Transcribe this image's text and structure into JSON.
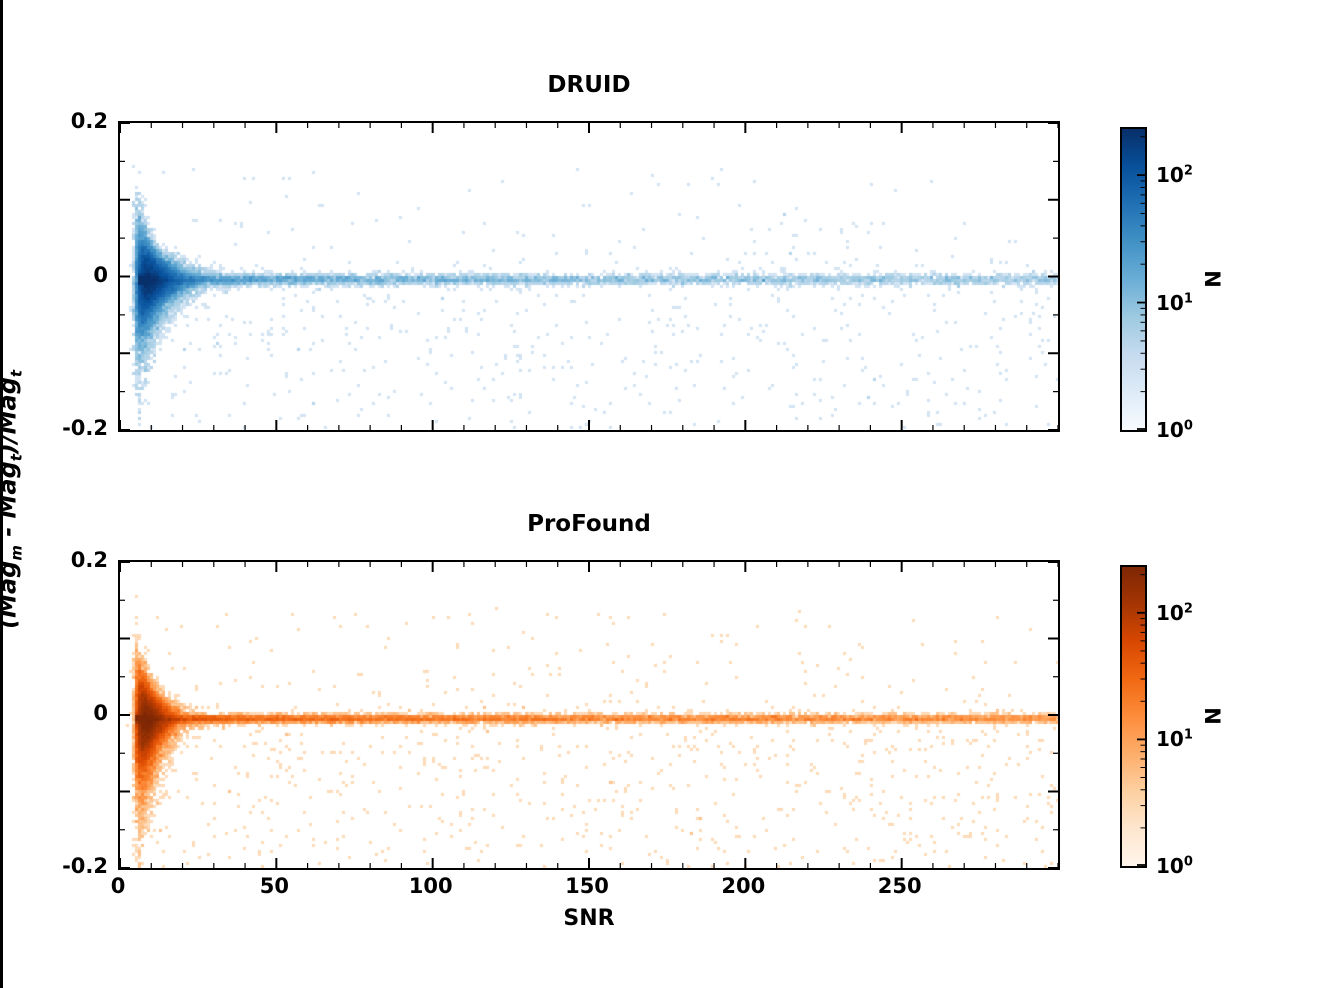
{
  "chart_data": {
    "type": "heatmap",
    "description": "Two stacked 2D density (hist2d) scatter plots of fractional magnitude error versus SNR for two source finders, each with a log-scaled colorbar of counts N.",
    "xlabel": "SNR",
    "ylabel_segments": [
      {
        "t": "(Mag"
      },
      {
        "t": "m",
        "sub": true
      },
      {
        "t": " - Mag"
      },
      {
        "t": "t",
        "sub": true
      },
      {
        "t": ")/Mag"
      },
      {
        "t": "t",
        "sub": true
      }
    ],
    "subplots": [
      {
        "title": "DRUID",
        "colormap": "Blues",
        "colormap_stops": [
          "#f7fbff",
          "#deebf7",
          "#c6dbef",
          "#9ecae1",
          "#6baed6",
          "#4292c6",
          "#2171b5",
          "#08519c",
          "#08306b"
        ],
        "xlim": [
          0,
          300
        ],
        "ylim": [
          -0.2,
          0.2
        ],
        "xticks_major": [
          0,
          50,
          100,
          150,
          200,
          250
        ],
        "xtick_minor_step": 10,
        "yticks_major": [
          -0.2,
          -0.1,
          0,
          0.1,
          0.2
        ],
        "ytick_minor_step": 0.05,
        "xtick_labels": [],
        "ytick_labels": [
          {
            "value": 0.2,
            "label": "0.2"
          },
          {
            "value": 0,
            "label": "0"
          },
          {
            "value": -0.2,
            "label": "-0.2"
          }
        ],
        "colorbar": {
          "label": "N",
          "scale": "log",
          "vmin": 1,
          "vmax": 230,
          "major_ticks": [
            {
              "value": 1,
              "mantissa": "10",
              "exp": "0"
            },
            {
              "value": 10,
              "mantissa": "10",
              "exp": "1"
            },
            {
              "value": 100,
              "mantissa": "10",
              "exp": "2"
            }
          ]
        },
        "seed": 12,
        "distribution": {
          "core": {
            "n": 26000,
            "snr_min": 3,
            "log_mu": 1.9,
            "log_sigma": 0.5,
            "y_center": -0.004,
            "sigma_base": 0.006,
            "sigma_scale": 0.5,
            "sigma_pow": 1.55,
            "tail_prob": 0.15,
            "tail_scale": 0.055,
            "tail_ref": 7
          },
          "ridge": {
            "n": 8000,
            "snr_min": 6,
            "pow": 2.4,
            "sigma": 0.0035
          },
          "sparse": {
            "n": 700,
            "below_frac": 0.72
          }
        }
      },
      {
        "title": "ProFound",
        "colormap": "Oranges",
        "colormap_stops": [
          "#fff5eb",
          "#fee6ce",
          "#fdd0a2",
          "#fdae6b",
          "#fd8d3c",
          "#f16913",
          "#d94801",
          "#a63603",
          "#7f2704"
        ],
        "xlim": [
          0,
          300
        ],
        "ylim": [
          -0.2,
          0.2
        ],
        "xticks_major": [
          0,
          50,
          100,
          150,
          200,
          250
        ],
        "xtick_minor_step": 10,
        "yticks_major": [
          -0.2,
          -0.1,
          0,
          0.1,
          0.2
        ],
        "ytick_minor_step": 0.05,
        "xtick_labels": [
          {
            "value": 0,
            "label": "0"
          },
          {
            "value": 50,
            "label": "50"
          },
          {
            "value": 100,
            "label": "100"
          },
          {
            "value": 150,
            "label": "150"
          },
          {
            "value": 200,
            "label": "200"
          },
          {
            "value": 250,
            "label": "250"
          }
        ],
        "ytick_labels": [
          {
            "value": 0.2,
            "label": "0.2"
          },
          {
            "value": 0,
            "label": "0"
          },
          {
            "value": -0.2,
            "label": "-0.2"
          }
        ],
        "colorbar": {
          "label": "N",
          "scale": "log",
          "vmin": 1,
          "vmax": 230,
          "major_ticks": [
            {
              "value": 1,
              "mantissa": "10",
              "exp": "0"
            },
            {
              "value": 10,
              "mantissa": "10",
              "exp": "1"
            },
            {
              "value": 100,
              "mantissa": "10",
              "exp": "2"
            }
          ]
        },
        "seed": 99,
        "distribution": {
          "core": {
            "n": 24000,
            "snr_min": 3,
            "log_mu": 1.75,
            "log_sigma": 0.45,
            "y_center": -0.005,
            "sigma_base": 0.005,
            "sigma_scale": 0.42,
            "sigma_pow": 1.5,
            "tail_prob": 0.2,
            "tail_scale": 0.06,
            "tail_ref": 7
          },
          "ridge": {
            "n": 12000,
            "snr_min": 5,
            "pow": 1.9,
            "sigma": 0.0028
          },
          "sparse": {
            "n": 900,
            "below_frac": 0.75
          }
        }
      }
    ]
  }
}
